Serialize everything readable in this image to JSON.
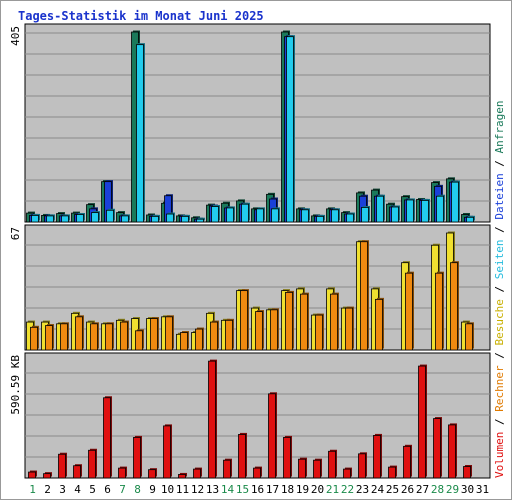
{
  "chart_data": {
    "type": "bar",
    "title": "Tages-Statistik im Monat Juni 2025",
    "x": [
      "1",
      "2",
      "3",
      "4",
      "5",
      "6",
      "7",
      "8",
      "9",
      "10",
      "11",
      "12",
      "13",
      "14",
      "15",
      "16",
      "17",
      "18",
      "19",
      "20",
      "21",
      "22",
      "23",
      "24",
      "25",
      "26",
      "27",
      "28",
      "29",
      "30",
      "31"
    ],
    "weekend_days": [
      "1",
      "7",
      "8",
      "14",
      "15",
      "21",
      "22",
      "28",
      "29"
    ],
    "panels": [
      {
        "name": "top",
        "axis_max_label": "405",
        "ylim": [
          0,
          405
        ],
        "series": [
          {
            "name": "Anfragen",
            "color": "#1a7a5a",
            "values": [
              19,
              14,
              18,
              19,
              37,
              86,
              20,
              405,
              15,
              40,
              13,
              9,
              36,
              40,
              45,
              28,
              59,
              405,
              28,
              13,
              28,
              20,
              62,
              68,
              38,
              54,
              48,
              84,
              92,
              16,
              0
            ]
          },
          {
            "name": "Dateien",
            "color": "#1a40d9",
            "values": [
              14,
              13,
              13,
              16,
              28,
              86,
              13,
              0,
              12,
              56,
              12,
              6,
              34,
              30,
              38,
              26,
              49,
              395,
              26,
              12,
              26,
              17,
              55,
              55,
              32,
              47,
              46,
              76,
              85,
              10,
              0
            ]
          },
          {
            "name": "Seiten",
            "color": "#22ccee",
            "values": [
              14,
              13,
              13,
              16,
              20,
              25,
              13,
              378,
              12,
              17,
              12,
              6,
              33,
              30,
              38,
              28,
              28,
              395,
              26,
              12,
              26,
              17,
              31,
              55,
              32,
              47,
              46,
              55,
              85,
              10,
              0
            ]
          }
        ]
      },
      {
        "name": "middle",
        "axis_max_label": "67",
        "ylim": [
          0,
          67
        ],
        "series": [
          {
            "name": "Besuche",
            "color": "#f0e030",
            "values": [
              16,
              16,
              15,
              21,
              16,
              15,
              17,
              18,
              18,
              19,
              9,
              10,
              21,
              17,
              34,
              24,
              23,
              34,
              35,
              20,
              35,
              24,
              62,
              35,
              0,
              50,
              0,
              60,
              67,
              16,
              0
            ]
          },
          {
            "name": "Rechner",
            "color": "#f08a10",
            "values": [
              13,
              14,
              15,
              19,
              15,
              15,
              16,
              11,
              18,
              19,
              10,
              12,
              16,
              17,
              34,
              22,
              23,
              33,
              32,
              20,
              32,
              24,
              62,
              29,
              0,
              44,
              0,
              44,
              50,
              15,
              0
            ]
          }
        ]
      },
      {
        "name": "bottom",
        "axis_max_label": "590.59 KB",
        "ylim": [
          0,
          590.59
        ],
        "series": [
          {
            "name": "Volumen",
            "color": "#e01010",
            "values": [
              30,
              22,
              120,
              62,
              140,
              405,
              50,
              205,
              42,
              263,
              18,
              45,
              590,
              90,
              220,
              50,
              425,
              205,
              95,
              90,
              135,
              45,
              122,
              215,
              55,
              160,
              565,
              300,
              268,
              58,
              0
            ]
          }
        ]
      }
    ],
    "legend": [
      "Anfragen",
      "Dateien",
      "Seiten",
      "Besuche",
      "Rechner",
      "Volumen"
    ],
    "legend_placement": "right-vertical",
    "grid": true
  }
}
